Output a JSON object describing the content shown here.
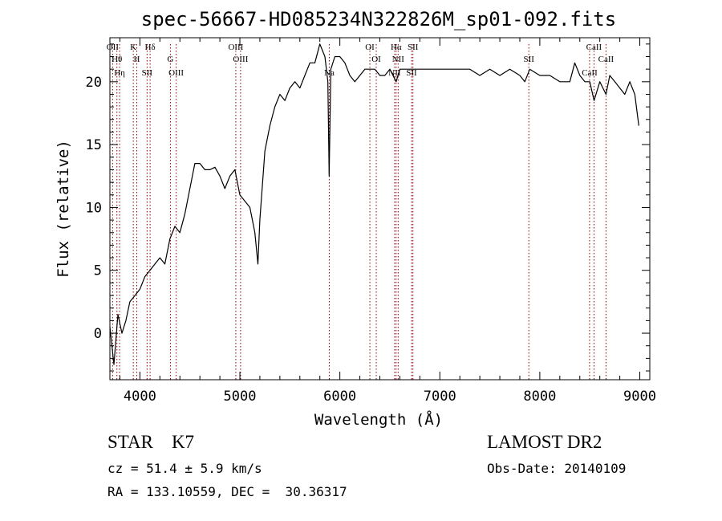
{
  "chart_data": {
    "type": "line",
    "title": "spec-56667-HD085234N322826M_sp01-092.fits",
    "xlabel": "Wavelength (Å)",
    "ylabel": "Flux (relative)",
    "xlim": [
      3700,
      9100
    ],
    "ylim": [
      -3.7,
      23.5
    ],
    "xticks": [
      4000,
      5000,
      6000,
      7000,
      8000,
      9000
    ],
    "yticks": [
      0,
      5,
      10,
      15,
      20
    ],
    "series": [
      {
        "x": [
          3700,
          3740,
          3780,
          3820,
          3860,
          3900,
          3950,
          4000,
          4050,
          4100,
          4150,
          4200,
          4250,
          4300,
          4350,
          4400,
          4450,
          4500,
          4550,
          4600,
          4650,
          4700,
          4750,
          4800,
          4850,
          4900,
          4950,
          5000,
          5050,
          5100,
          5150,
          5180,
          5200,
          5250,
          5300,
          5350,
          5400,
          5450,
          5500,
          5550,
          5600,
          5650,
          5700,
          5750,
          5800,
          5850,
          5880,
          5893,
          5910,
          5950,
          6000,
          6050,
          6100,
          6150,
          6200,
          6250,
          6300,
          6350,
          6400,
          6450,
          6500,
          6563,
          6600,
          6650,
          6700,
          6750,
          6800,
          6900,
          7000,
          7100,
          7200,
          7300,
          7400,
          7500,
          7600,
          7700,
          7800,
          7850,
          7900,
          8000,
          8100,
          8200,
          8300,
          8350,
          8400,
          8450,
          8500,
          8542,
          8600,
          8662,
          8700,
          8750,
          8800,
          8850,
          8900,
          8950,
          8990
        ],
        "y": [
          0.5,
          -2.5,
          1.5,
          0.0,
          1.0,
          2.5,
          3.0,
          3.5,
          4.5,
          5.0,
          5.5,
          6.0,
          5.5,
          7.5,
          8.5,
          8.0,
          9.5,
          11.5,
          13.5,
          13.5,
          13.0,
          13.0,
          13.2,
          12.5,
          11.5,
          12.5,
          13.0,
          11.0,
          10.5,
          10.0,
          8.0,
          5.5,
          9.0,
          14.5,
          16.5,
          18.0,
          19.0,
          18.5,
          19.5,
          20.0,
          19.5,
          20.5,
          21.5,
          21.5,
          23.0,
          22.0,
          20.0,
          12.5,
          21.0,
          22.0,
          22.0,
          21.5,
          20.5,
          20.0,
          20.5,
          21.0,
          21.0,
          21.0,
          20.5,
          20.5,
          21.0,
          20.0,
          21.0,
          21.0,
          21.0,
          21.0,
          21.0,
          21.0,
          21.0,
          21.0,
          21.0,
          21.0,
          20.5,
          21.0,
          20.5,
          21.0,
          20.5,
          20.0,
          21.0,
          20.5,
          20.5,
          20.0,
          20.0,
          21.5,
          20.5,
          20.0,
          20.0,
          18.5,
          20.0,
          19.0,
          20.5,
          20.0,
          19.5,
          19.0,
          20.0,
          19.0,
          16.5
        ]
      }
    ],
    "lines": [
      {
        "wave": 3727,
        "label": "OII"
      },
      {
        "wave": 3770,
        "label": "Hθ"
      },
      {
        "wave": 3797,
        "label": "Hη"
      },
      {
        "wave": 3934,
        "label": "K"
      },
      {
        "wave": 3969,
        "label": "H"
      },
      {
        "wave": 4072,
        "label": "SII"
      },
      {
        "wave": 4102,
        "label": "Hδ"
      },
      {
        "wave": 4305,
        "label": "G"
      },
      {
        "wave": 4363,
        "label": "OIII"
      },
      {
        "wave": 4959,
        "label": "OIII"
      },
      {
        "wave": 5007,
        "label": "OIII"
      },
      {
        "wave": 5894,
        "label": "Na"
      },
      {
        "wave": 6300,
        "label": "OI"
      },
      {
        "wave": 6364,
        "label": "OI"
      },
      {
        "wave": 6548,
        "label": "NII"
      },
      {
        "wave": 6563,
        "label": "Hα"
      },
      {
        "wave": 6583,
        "label": "NII"
      },
      {
        "wave": 6717,
        "label": "SII"
      },
      {
        "wave": 6731,
        "label": "SII"
      },
      {
        "wave": 7890,
        "label": "SII"
      },
      {
        "wave": 8498,
        "label": "CaII"
      },
      {
        "wave": 8542,
        "label": "CaII"
      },
      {
        "wave": 8662,
        "label": "CaII"
      }
    ],
    "line_color": "#8b0000"
  },
  "info": {
    "class": "STAR    K7",
    "survey": "LAMOST DR2",
    "cz": "cz = 51.4 ± 5.9 km/s",
    "obs_date": "Obs-Date: 20140109",
    "radec": "RA = 133.10559, DEC =  30.36317"
  }
}
